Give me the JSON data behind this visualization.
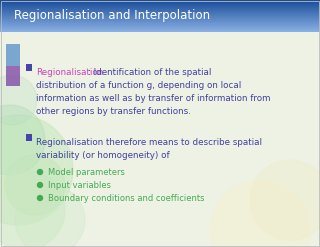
{
  "title": "Regionalisation and Interpolation",
  "title_color": "#ffffff",
  "slide_bg": "#eef2e4",
  "body_text_color": "#4040a0",
  "highlight_color": "#cc44bb",
  "green_color": "#44aa55",
  "bullet1_lines": [
    [
      "Regionalisation",
      ": Identification of the spatial"
    ],
    [
      "",
      "distribution of a function g, depending on local"
    ],
    [
      "",
      "information as well as by transfer of information from"
    ],
    [
      "",
      "other regions by transfer functions."
    ]
  ],
  "bullet2_lines": [
    "Regionalisation therefore means to describe spatial",
    "variability (or homogeneity) of"
  ],
  "sub_bullets": [
    "Model parameters",
    "Input variables",
    "Boundary conditions and coefficients"
  ],
  "deco_sq1_color": "#6699cc",
  "deco_sq2_color": "#8855aa",
  "bullet_sq_color": "#4444aa"
}
